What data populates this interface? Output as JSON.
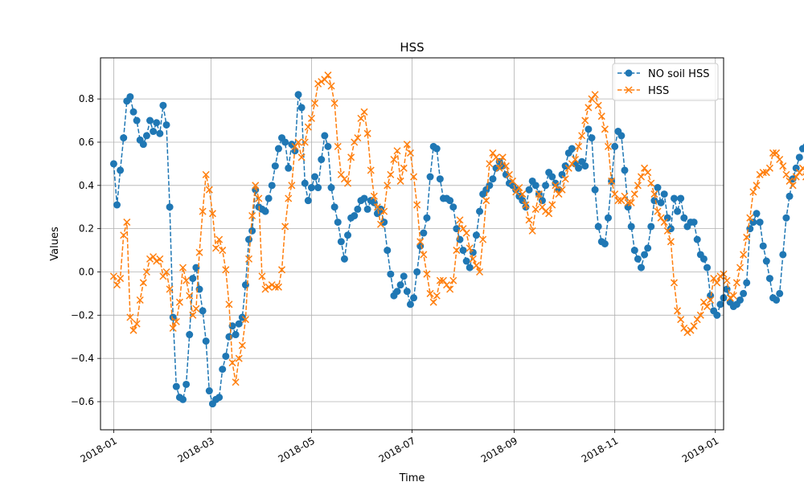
{
  "chart_data": {
    "type": "line",
    "title": "HSS",
    "xlabel": "Time",
    "ylabel": "Values",
    "x_start": "2018-01-01",
    "x_step_days": 2,
    "xlim": [
      "2017-12-24",
      "2019-01-06"
    ],
    "ylim": [
      -0.73,
      0.99
    ],
    "x_ticks": [
      "2018-01",
      "2018-03",
      "2018-05",
      "2018-07",
      "2018-09",
      "2018-11",
      "2019-01"
    ],
    "y_ticks": [
      -0.6,
      -0.4,
      -0.2,
      0.0,
      0.2,
      0.4,
      0.6,
      0.8
    ],
    "y_tick_labels": [
      "−0.6",
      "−0.4",
      "−0.2",
      "0.0",
      "0.2",
      "0.4",
      "0.6",
      "0.8"
    ],
    "grid": true,
    "legend_position": "top-right",
    "series": [
      {
        "name": "NO soil HSS",
        "color": "#1f77b4",
        "marker": "circle",
        "linestyle": "dashed",
        "values": [
          0.5,
          0.31,
          0.47,
          0.62,
          0.79,
          0.81,
          0.74,
          0.7,
          0.61,
          0.59,
          0.63,
          0.7,
          0.65,
          0.69,
          0.64,
          0.77,
          0.68,
          0.3,
          -0.21,
          -0.53,
          -0.58,
          -0.59,
          -0.52,
          -0.29,
          -0.03,
          0.02,
          -0.08,
          -0.18,
          -0.32,
          -0.55,
          -0.61,
          -0.59,
          -0.58,
          -0.45,
          -0.39,
          -0.3,
          -0.25,
          -0.29,
          -0.24,
          -0.21,
          -0.06,
          0.15,
          0.19,
          0.38,
          0.3,
          0.29,
          0.28,
          0.34,
          0.4,
          0.49,
          0.57,
          0.62,
          0.6,
          0.48,
          0.59,
          0.56,
          0.82,
          0.76,
          0.41,
          0.33,
          0.39,
          0.44,
          0.39,
          0.52,
          0.63,
          0.58,
          0.39,
          0.3,
          0.23,
          0.14,
          0.06,
          0.17,
          0.25,
          0.26,
          0.29,
          0.33,
          0.34,
          0.29,
          0.33,
          0.32,
          0.27,
          0.29,
          0.23,
          0.1,
          -0.01,
          -0.11,
          -0.09,
          -0.06,
          -0.02,
          -0.09,
          -0.15,
          -0.12,
          0.0,
          0.12,
          0.18,
          0.25,
          0.44,
          0.58,
          0.57,
          0.43,
          0.34,
          0.34,
          0.33,
          0.3,
          0.2,
          0.15,
          0.1,
          0.05,
          0.02,
          0.09,
          0.17,
          0.28,
          0.36,
          0.38,
          0.4,
          0.43,
          0.48,
          0.51,
          0.49,
          0.45,
          0.41,
          0.4,
          0.38,
          0.35,
          0.33,
          0.3,
          0.38,
          0.42,
          0.4,
          0.36,
          0.33,
          0.4,
          0.46,
          0.44,
          0.41,
          0.38,
          0.45,
          0.49,
          0.55,
          0.57,
          0.5,
          0.48,
          0.51,
          0.49,
          0.66,
          0.62,
          0.38,
          0.21,
          0.14,
          0.13,
          0.25,
          0.42,
          0.58,
          0.65,
          0.63,
          0.47,
          0.3,
          0.21,
          0.1,
          0.06,
          0.02,
          0.08,
          0.11,
          0.21,
          0.33,
          0.39,
          0.32,
          0.36,
          0.25,
          0.2,
          0.34,
          0.28,
          0.34,
          0.25,
          0.21,
          0.23,
          0.23,
          0.15,
          0.08,
          0.06,
          0.02,
          -0.11,
          -0.18,
          -0.2,
          -0.15,
          -0.12,
          -0.08,
          -0.14,
          -0.16,
          -0.15,
          -0.13,
          -0.1,
          -0.05,
          0.2,
          0.23,
          0.27,
          0.23,
          0.12,
          0.05,
          -0.03,
          -0.12,
          -0.13,
          -0.1,
          0.08,
          0.25,
          0.35,
          0.43,
          0.48,
          0.53,
          0.57,
          0.58,
          0.55,
          0.53,
          0.5,
          0.45,
          0.41,
          0.38,
          0.39,
          0.42,
          0.46,
          0.5,
          0.56,
          0.6,
          0.65,
          0.71,
          0.74,
          0.73,
          0.66,
          0.62,
          0.58,
          0.52,
          0.48,
          0.45,
          0.4,
          0.3,
          0.12,
          0.02,
          -0.09,
          -0.13,
          -0.14,
          -0.1,
          0.04,
          0.1,
          0.2,
          0.27,
          0.29,
          0.34,
          0.36,
          0.35,
          0.29,
          0.12,
          -0.03,
          -0.05,
          0.18,
          0.22,
          0.27,
          0.3,
          0.28,
          0.32,
          0.36,
          0.4,
          0.44,
          0.47,
          0.5,
          0.55,
          0.6,
          0.65,
          0.56,
          0.53,
          0.55,
          0.61,
          0.65,
          0.72,
          0.81,
          0.72,
          0.28,
          0.22,
          0.18,
          0.25,
          0.3,
          0.36,
          0.3,
          0.2,
          0.14,
          0.1,
          0.04,
          0.02,
          -0.05,
          -0.1,
          -0.16,
          -0.2,
          -0.24,
          -0.27,
          -0.4,
          -0.48,
          -0.47,
          -0.44,
          -0.34,
          -0.25,
          -0.18,
          -0.1,
          -0.06,
          0.01,
          -0.05,
          -0.06,
          -0.18,
          -0.27,
          -0.3,
          -0.65,
          -0.64,
          -0.44,
          -0.3,
          -0.14,
          0.06,
          0.22,
          0.31,
          0.22,
          0.18,
          0.1,
          0.16,
          0.18,
          0.17,
          0.03,
          -0.11,
          -0.3
        ]
      },
      {
        "name": "HSS",
        "color": "#ff7f0e",
        "marker": "x",
        "linestyle": "dashed",
        "values": [
          -0.02,
          -0.06,
          -0.03,
          0.17,
          0.23,
          -0.21,
          -0.27,
          -0.24,
          -0.13,
          -0.05,
          0.0,
          0.06,
          0.07,
          0.05,
          0.06,
          -0.02,
          0.0,
          -0.08,
          -0.26,
          -0.23,
          -0.14,
          0.02,
          -0.04,
          -0.11,
          -0.2,
          -0.17,
          0.09,
          0.28,
          0.45,
          0.38,
          0.27,
          0.11,
          0.15,
          0.1,
          0.01,
          -0.15,
          -0.42,
          -0.51,
          -0.4,
          -0.34,
          -0.22,
          0.06,
          0.26,
          0.4,
          0.34,
          -0.02,
          -0.08,
          -0.07,
          -0.06,
          -0.07,
          -0.07,
          0.01,
          0.21,
          0.34,
          0.4,
          0.58,
          0.6,
          0.53,
          0.6,
          0.67,
          0.71,
          0.78,
          0.87,
          0.88,
          0.89,
          0.91,
          0.86,
          0.78,
          0.58,
          0.45,
          0.43,
          0.41,
          0.53,
          0.6,
          0.62,
          0.71,
          0.74,
          0.64,
          0.47,
          0.35,
          0.3,
          0.22,
          0.28,
          0.4,
          0.45,
          0.52,
          0.56,
          0.42,
          0.48,
          0.59,
          0.55,
          0.44,
          0.31,
          0.14,
          0.08,
          -0.01,
          -0.1,
          -0.14,
          -0.11,
          -0.04,
          -0.04,
          -0.06,
          -0.08,
          -0.04,
          0.1,
          0.24,
          0.2,
          0.18,
          0.11,
          0.06,
          0.03,
          0.0,
          0.15,
          0.33,
          0.5,
          0.55,
          0.53,
          0.48,
          0.53,
          0.49,
          0.45,
          0.42,
          0.37,
          0.39,
          0.36,
          0.31,
          0.24,
          0.19,
          0.29,
          0.36,
          0.3,
          0.28,
          0.27,
          0.31,
          0.4,
          0.36,
          0.38,
          0.43,
          0.48,
          0.5,
          0.52,
          0.58,
          0.63,
          0.7,
          0.76,
          0.8,
          0.82,
          0.77,
          0.72,
          0.66,
          0.58,
          0.42,
          0.36,
          0.33,
          0.33,
          0.35,
          0.32,
          0.32,
          0.36,
          0.4,
          0.44,
          0.48,
          0.46,
          0.41,
          0.36,
          0.28,
          0.25,
          0.23,
          0.19,
          0.14,
          -0.05,
          -0.18,
          -0.22,
          -0.26,
          -0.28,
          -0.27,
          -0.25,
          -0.22,
          -0.2,
          -0.14,
          -0.16,
          -0.13,
          -0.03,
          -0.05,
          -0.02,
          -0.01,
          -0.04,
          -0.12,
          -0.11,
          -0.05,
          0.02,
          0.08,
          0.16,
          0.25,
          0.37,
          0.4,
          0.45,
          0.46,
          0.46,
          0.48,
          0.55,
          0.55,
          0.52,
          0.49,
          0.45,
          0.42,
          0.4,
          0.44,
          0.46,
          0.48,
          0.44,
          0.08,
          0.11,
          0.13,
          -0.05,
          -0.03,
          0.09,
          0.05,
          0.36,
          0.43,
          0.5,
          0.59,
          0.62,
          0.64,
          0.61,
          0.54,
          0.6,
          0.57,
          0.54,
          0.48,
          0.44,
          0.39,
          0.37,
          0.3,
          0.22,
          0.13,
          0.09,
          0.15,
          0.2,
          0.16,
          0.17,
          0.12,
          0.17,
          0.19,
          0.23,
          0.37,
          0.4,
          0.46,
          0.54,
          0.58,
          0.64,
          0.69,
          0.71,
          0.67,
          0.69,
          0.66,
          0.69,
          0.73,
          0.69,
          0.53,
          0.35,
          0.2,
          0.14,
          0.1,
          0.07,
          0.05,
          0.02,
          0.07,
          0.08,
          0.12,
          0.19,
          0.24,
          0.29,
          0.32,
          0.38,
          0.44,
          0.37,
          0.31,
          0.24,
          0.18,
          0.3,
          0.29,
          0.38,
          0.44,
          0.51,
          0.55,
          0.56,
          0.52,
          0.5,
          0.53,
          0.49,
          0.44,
          0.32,
          0.24,
          0.15,
          0.09,
          0.06,
          0.03,
          -0.05,
          -0.18,
          -0.38,
          -0.08,
          0.04,
          0.15,
          0.26,
          0.35,
          0.4,
          0.42,
          0.48
        ]
      }
    ]
  }
}
